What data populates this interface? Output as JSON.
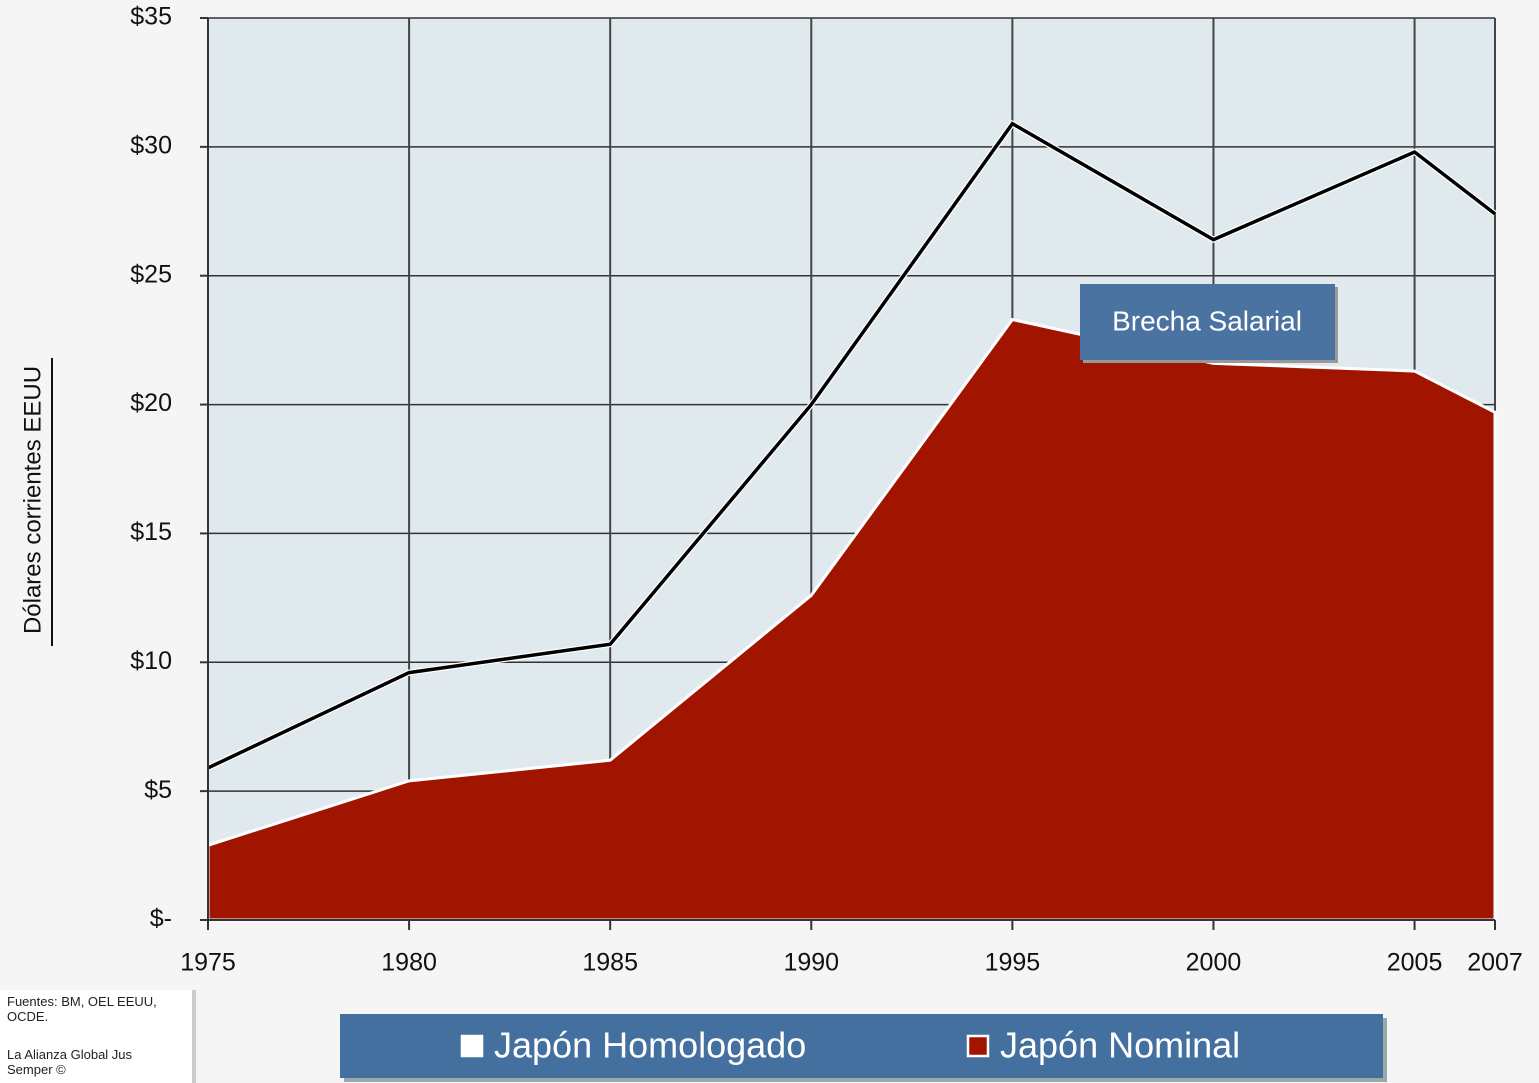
{
  "chart_data": {
    "type": "area",
    "y_label": "Dólares corrientes EEUU",
    "x": [
      1975,
      1980,
      1985,
      1990,
      1995,
      2000,
      2005,
      2007
    ],
    "series": [
      {
        "name": "Japón Homologado",
        "type": "line",
        "color": "#000000",
        "values": [
          5.9,
          9.6,
          10.7,
          20.0,
          30.9,
          26.4,
          29.8,
          27.4
        ]
      },
      {
        "name": "Japón Nominal",
        "type": "area",
        "color": "#a11500",
        "values": [
          2.9,
          5.4,
          6.2,
          12.6,
          23.3,
          21.6,
          21.3,
          19.7
        ]
      }
    ],
    "xlim": [
      1975,
      2007
    ],
    "xticks": [
      1975,
      1980,
      1985,
      1990,
      1995,
      2000,
      2005,
      2007
    ],
    "ylim": [
      0,
      35
    ],
    "yticks": [
      {
        "value": 0,
        "label": "$-"
      },
      {
        "value": 5,
        "label": "$5"
      },
      {
        "value": 10,
        "label": "$10"
      },
      {
        "value": 15,
        "label": "$15"
      },
      {
        "value": 20,
        "label": "$20"
      },
      {
        "value": 25,
        "label": "$25"
      },
      {
        "value": 30,
        "label": "$30"
      },
      {
        "value": 35,
        "label": "$35"
      }
    ],
    "grid": true,
    "annotation": "Brecha Salarial",
    "sources": [
      "Fuentes: BM, OEL EEUU, OCDE.",
      "La Alianza Global Jus Semper ©"
    ]
  }
}
